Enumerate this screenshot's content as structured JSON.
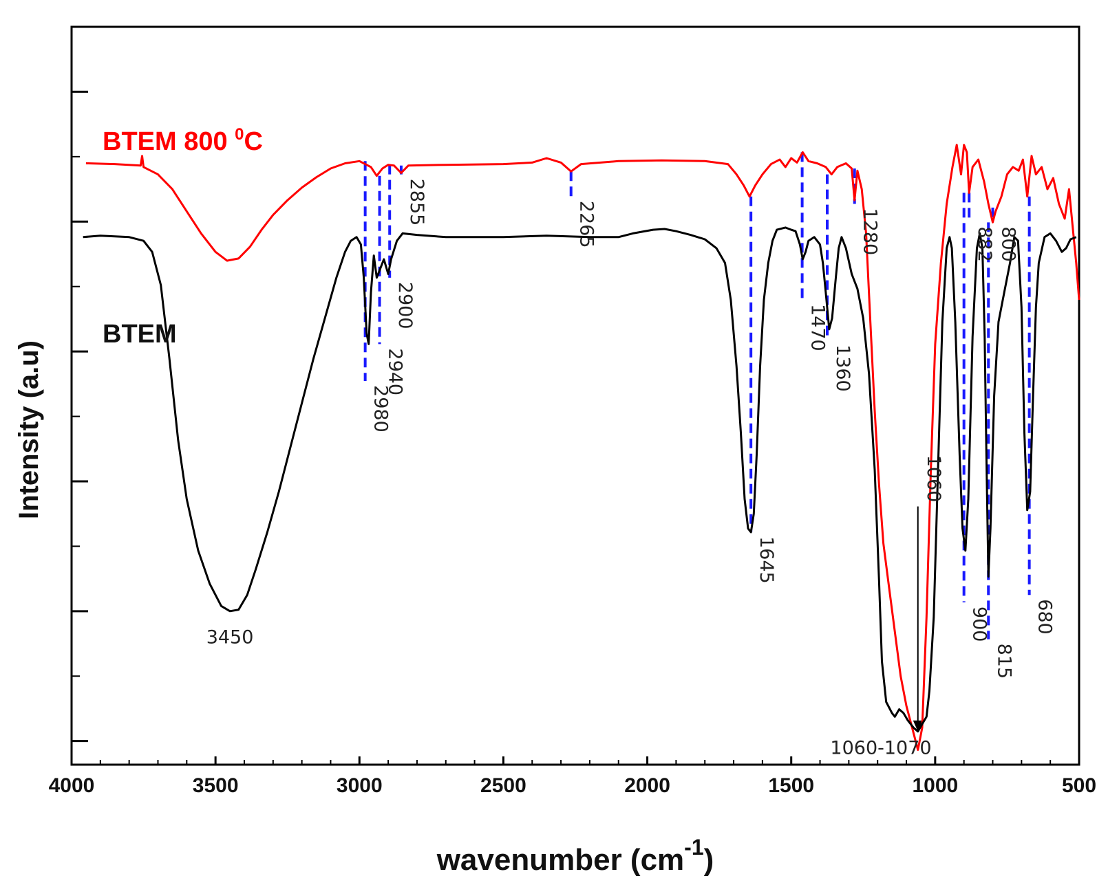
{
  "chart_data": {
    "type": "line",
    "title": "",
    "xlabel": "wavenumber (cm",
    "xlabel_sup": "-1",
    "xlabel_end": ")",
    "ylabel": "Intensity (a.u)",
    "xlim": [
      4000,
      500
    ],
    "ylim": [
      0,
      100
    ],
    "x_ticks": [
      4000,
      3500,
      3000,
      2500,
      2000,
      1500,
      1000,
      500
    ],
    "x_tick_labels": [
      "4000",
      "3500",
      "3000",
      "2500",
      "2000",
      "1500",
      "1000",
      "500"
    ],
    "y_major_ticks": [
      3.2,
      20.8,
      38.4,
      56.0,
      73.6,
      91.2
    ],
    "y_minor_ticks": [
      12.0,
      29.6,
      47.2,
      64.8,
      82.4
    ],
    "series": [
      {
        "name": "BTEM 800 °C",
        "label_main": "BTEM 800 ",
        "label_sup": "0",
        "label_end": "C",
        "color": "#ff0000",
        "points": [
          [
            3950,
            81.5
          ],
          [
            3850,
            81.4
          ],
          [
            3760,
            81.2
          ],
          [
            3755,
            82.5
          ],
          [
            3750,
            81.0
          ],
          [
            3700,
            80.0
          ],
          [
            3650,
            78.0
          ],
          [
            3600,
            75.0
          ],
          [
            3550,
            72.0
          ],
          [
            3500,
            69.5
          ],
          [
            3460,
            68.3
          ],
          [
            3420,
            68.6
          ],
          [
            3380,
            70.2
          ],
          [
            3340,
            72.5
          ],
          [
            3300,
            74.5
          ],
          [
            3250,
            76.5
          ],
          [
            3200,
            78.2
          ],
          [
            3150,
            79.6
          ],
          [
            3100,
            80.8
          ],
          [
            3050,
            81.5
          ],
          [
            3000,
            81.8
          ],
          [
            2960,
            81.0
          ],
          [
            2940,
            79.8
          ],
          [
            2920,
            80.8
          ],
          [
            2900,
            81.3
          ],
          [
            2880,
            81.2
          ],
          [
            2855,
            80.2
          ],
          [
            2830,
            81.2
          ],
          [
            2700,
            81.3
          ],
          [
            2500,
            81.4
          ],
          [
            2400,
            81.6
          ],
          [
            2350,
            82.2
          ],
          [
            2300,
            81.6
          ],
          [
            2265,
            80.4
          ],
          [
            2230,
            81.4
          ],
          [
            2100,
            81.8
          ],
          [
            1950,
            81.9
          ],
          [
            1800,
            81.8
          ],
          [
            1720,
            81.4
          ],
          [
            1690,
            80.0
          ],
          [
            1665,
            78.5
          ],
          [
            1645,
            77.0
          ],
          [
            1625,
            78.5
          ],
          [
            1600,
            80.0
          ],
          [
            1570,
            81.4
          ],
          [
            1540,
            82.0
          ],
          [
            1520,
            81.0
          ],
          [
            1500,
            82.2
          ],
          [
            1480,
            81.6
          ],
          [
            1460,
            83.0
          ],
          [
            1440,
            81.8
          ],
          [
            1410,
            81.5
          ],
          [
            1380,
            81.0
          ],
          [
            1360,
            80.0
          ],
          [
            1340,
            81.0
          ],
          [
            1310,
            81.5
          ],
          [
            1290,
            80.8
          ],
          [
            1280,
            76.5
          ],
          [
            1270,
            80.5
          ],
          [
            1255,
            78.0
          ],
          [
            1240,
            72.0
          ],
          [
            1225,
            60.0
          ],
          [
            1210,
            48.0
          ],
          [
            1195,
            38.0
          ],
          [
            1180,
            30.0
          ],
          [
            1160,
            24.0
          ],
          [
            1140,
            18.0
          ],
          [
            1120,
            12.0
          ],
          [
            1100,
            8.0
          ],
          [
            1080,
            5.0
          ],
          [
            1060,
            2.0
          ],
          [
            1045,
            5.0
          ],
          [
            1030,
            20.0
          ],
          [
            1015,
            40.0
          ],
          [
            1000,
            57.0
          ],
          [
            980,
            68.0
          ],
          [
            960,
            76.0
          ],
          [
            940,
            81.0
          ],
          [
            925,
            84.0
          ],
          [
            910,
            80.0
          ],
          [
            900,
            84.0
          ],
          [
            890,
            83.0
          ],
          [
            882,
            77.5
          ],
          [
            870,
            81.0
          ],
          [
            850,
            82.0
          ],
          [
            830,
            79.0
          ],
          [
            815,
            76.0
          ],
          [
            800,
            73.5
          ],
          [
            790,
            75.0
          ],
          [
            770,
            77.0
          ],
          [
            750,
            80.0
          ],
          [
            730,
            81.0
          ],
          [
            710,
            80.5
          ],
          [
            695,
            82.0
          ],
          [
            680,
            77.0
          ],
          [
            665,
            82.5
          ],
          [
            650,
            80.0
          ],
          [
            630,
            81.0
          ],
          [
            610,
            78.0
          ],
          [
            590,
            79.5
          ],
          [
            570,
            76.0
          ],
          [
            550,
            74.0
          ],
          [
            535,
            78.0
          ],
          [
            520,
            72.0
          ],
          [
            510,
            68.0
          ],
          [
            500,
            63.0
          ]
        ]
      },
      {
        "name": "BTEM",
        "color": "#000000",
        "points": [
          [
            3960,
            71.5
          ],
          [
            3900,
            71.7
          ],
          [
            3800,
            71.5
          ],
          [
            3750,
            71.0
          ],
          [
            3720,
            69.5
          ],
          [
            3690,
            65.0
          ],
          [
            3660,
            55.0
          ],
          [
            3630,
            44.0
          ],
          [
            3600,
            36.0
          ],
          [
            3560,
            29.0
          ],
          [
            3520,
            24.5
          ],
          [
            3480,
            21.5
          ],
          [
            3450,
            20.8
          ],
          [
            3420,
            21.0
          ],
          [
            3390,
            23.0
          ],
          [
            3360,
            26.5
          ],
          [
            3320,
            31.5
          ],
          [
            3280,
            37.0
          ],
          [
            3240,
            43.0
          ],
          [
            3200,
            49.0
          ],
          [
            3160,
            55.0
          ],
          [
            3120,
            60.5
          ],
          [
            3080,
            66.0
          ],
          [
            3050,
            69.5
          ],
          [
            3030,
            71.0
          ],
          [
            3010,
            71.5
          ],
          [
            2995,
            70.5
          ],
          [
            2985,
            66.0
          ],
          [
            2975,
            58.5
          ],
          [
            2968,
            57.0
          ],
          [
            2960,
            64.0
          ],
          [
            2950,
            69.0
          ],
          [
            2940,
            66.0
          ],
          [
            2930,
            67.0
          ],
          [
            2915,
            68.5
          ],
          [
            2900,
            66.5
          ],
          [
            2890,
            68.5
          ],
          [
            2870,
            71.0
          ],
          [
            2850,
            72.0
          ],
          [
            2800,
            71.8
          ],
          [
            2700,
            71.5
          ],
          [
            2600,
            71.5
          ],
          [
            2500,
            71.5
          ],
          [
            2350,
            71.7
          ],
          [
            2200,
            71.5
          ],
          [
            2100,
            71.5
          ],
          [
            2050,
            72.0
          ],
          [
            1980,
            72.5
          ],
          [
            1940,
            72.6
          ],
          [
            1900,
            72.3
          ],
          [
            1850,
            71.8
          ],
          [
            1800,
            71.2
          ],
          [
            1760,
            70.0
          ],
          [
            1730,
            68.0
          ],
          [
            1710,
            63.0
          ],
          [
            1690,
            54.0
          ],
          [
            1675,
            45.0
          ],
          [
            1662,
            36.0
          ],
          [
            1650,
            32.0
          ],
          [
            1640,
            31.5
          ],
          [
            1630,
            34.0
          ],
          [
            1620,
            42.0
          ],
          [
            1608,
            54.0
          ],
          [
            1595,
            63.0
          ],
          [
            1580,
            68.0
          ],
          [
            1565,
            71.0
          ],
          [
            1550,
            72.5
          ],
          [
            1520,
            72.8
          ],
          [
            1500,
            72.5
          ],
          [
            1485,
            72.3
          ],
          [
            1470,
            70.5
          ],
          [
            1460,
            68.5
          ],
          [
            1450,
            69.5
          ],
          [
            1440,
            71.0
          ],
          [
            1420,
            71.5
          ],
          [
            1400,
            70.5
          ],
          [
            1390,
            68.0
          ],
          [
            1380,
            64.0
          ],
          [
            1368,
            59.0
          ],
          [
            1358,
            60.5
          ],
          [
            1345,
            66.0
          ],
          [
            1335,
            70.0
          ],
          [
            1325,
            71.5
          ],
          [
            1310,
            70.0
          ],
          [
            1290,
            66.5
          ],
          [
            1270,
            64.5
          ],
          [
            1250,
            60.5
          ],
          [
            1230,
            53.0
          ],
          [
            1210,
            40.0
          ],
          [
            1195,
            25.0
          ],
          [
            1185,
            14.0
          ],
          [
            1170,
            8.5
          ],
          [
            1150,
            7.0
          ],
          [
            1140,
            6.5
          ],
          [
            1125,
            7.5
          ],
          [
            1110,
            7.0
          ],
          [
            1095,
            6.0
          ],
          [
            1075,
            5.0
          ],
          [
            1060,
            4.5
          ],
          [
            1045,
            5.5
          ],
          [
            1030,
            6.5
          ],
          [
            1020,
            10.0
          ],
          [
            1005,
            20.0
          ],
          [
            990,
            40.0
          ],
          [
            975,
            60.0
          ],
          [
            960,
            70.0
          ],
          [
            950,
            71.5
          ],
          [
            942,
            70.0
          ],
          [
            930,
            60.0
          ],
          [
            915,
            42.0
          ],
          [
            905,
            32.0
          ],
          [
            895,
            29.0
          ],
          [
            885,
            36.0
          ],
          [
            870,
            58.0
          ],
          [
            855,
            70.0
          ],
          [
            845,
            72.0
          ],
          [
            836,
            70.0
          ],
          [
            828,
            58.0
          ],
          [
            822,
            42.0
          ],
          [
            815,
            25.5
          ],
          [
            808,
            32.0
          ],
          [
            795,
            50.0
          ],
          [
            780,
            60.0
          ],
          [
            760,
            64.0
          ],
          [
            740,
            68.0
          ],
          [
            725,
            71.5
          ],
          [
            712,
            71.0
          ],
          [
            700,
            62.0
          ],
          [
            690,
            45.0
          ],
          [
            680,
            34.5
          ],
          [
            670,
            37.0
          ],
          [
            660,
            50.0
          ],
          [
            650,
            62.0
          ],
          [
            640,
            68.0
          ],
          [
            620,
            71.5
          ],
          [
            600,
            72.0
          ],
          [
            580,
            71.0
          ],
          [
            560,
            69.5
          ],
          [
            545,
            70.0
          ],
          [
            530,
            71.2
          ],
          [
            510,
            71.5
          ]
        ]
      }
    ],
    "annotations": [
      {
        "label": "2855",
        "series": "BTEM 800 °C",
        "x": 2855,
        "y_from": 81.2,
        "y_to": 80.0,
        "style": "dashed-blue"
      },
      {
        "label": "2265",
        "series": "BTEM 800 °C",
        "x": 2265,
        "y_from": 80.4,
        "y_to": 77.0,
        "style": "dashed-blue"
      },
      {
        "label": "1280",
        "series": "BTEM 800 °C",
        "x": 1280,
        "y_from": 80.8,
        "y_to": 76.0,
        "style": "dashed-blue"
      },
      {
        "label": "882",
        "series": "BTEM 800 °C",
        "x": 882,
        "y_from": 77.5,
        "y_to": 73.5,
        "style": "dashed-blue"
      },
      {
        "label": "800",
        "series": "BTEM 800 °C",
        "x": 800,
        "y_from": 75.5,
        "y_to": 73.5,
        "style": "dashed-blue"
      },
      {
        "label": "2980",
        "series": "BTEM",
        "x": 2980,
        "y_from": 81.8,
        "y_to": 52.0,
        "style": "dashed-blue"
      },
      {
        "label": "2940",
        "series": "BTEM",
        "x": 2930,
        "y_from": 79.8,
        "y_to": 57.0,
        "style": "dashed-blue"
      },
      {
        "label": "2900",
        "series": "BTEM",
        "x": 2895,
        "y_from": 81.3,
        "y_to": 66.0,
        "style": "dashed-blue"
      },
      {
        "label": "1645",
        "series": "BTEM",
        "x": 1640,
        "y_from": 77.0,
        "y_to": 31.5,
        "style": "dashed-blue"
      },
      {
        "label": "1470",
        "series": "BTEM",
        "x": 1462,
        "y_from": 83.0,
        "y_to": 63.0,
        "style": "dashed-blue"
      },
      {
        "label": "1360",
        "series": "BTEM",
        "x": 1375,
        "y_from": 80.0,
        "y_to": 57.5,
        "style": "dashed-blue"
      },
      {
        "label": "1060",
        "series": "BTEM",
        "x": 1060,
        "y_from": 35.0,
        "y_to": 4.5,
        "style": "solid-black"
      },
      {
        "label": "900",
        "series": "BTEM",
        "x": 900,
        "y_from": 77.5,
        "y_to": 22.0,
        "style": "dashed-blue"
      },
      {
        "label": "815",
        "series": "BTEM",
        "x": 815,
        "y_from": 73.5,
        "y_to": 17.0,
        "style": "dashed-blue"
      },
      {
        "label": "680",
        "series": "BTEM",
        "x": 673,
        "y_from": 77.0,
        "y_to": 23.0,
        "style": "dashed-blue"
      },
      {
        "label": "3450",
        "series": "BTEM",
        "x": 3450,
        "y_from": null,
        "y_to": null,
        "style": "text-only"
      },
      {
        "label": "1060-1070",
        "series": "BTEM",
        "x": 1200,
        "y_from": null,
        "y_to": null,
        "style": "text-only"
      }
    ]
  }
}
